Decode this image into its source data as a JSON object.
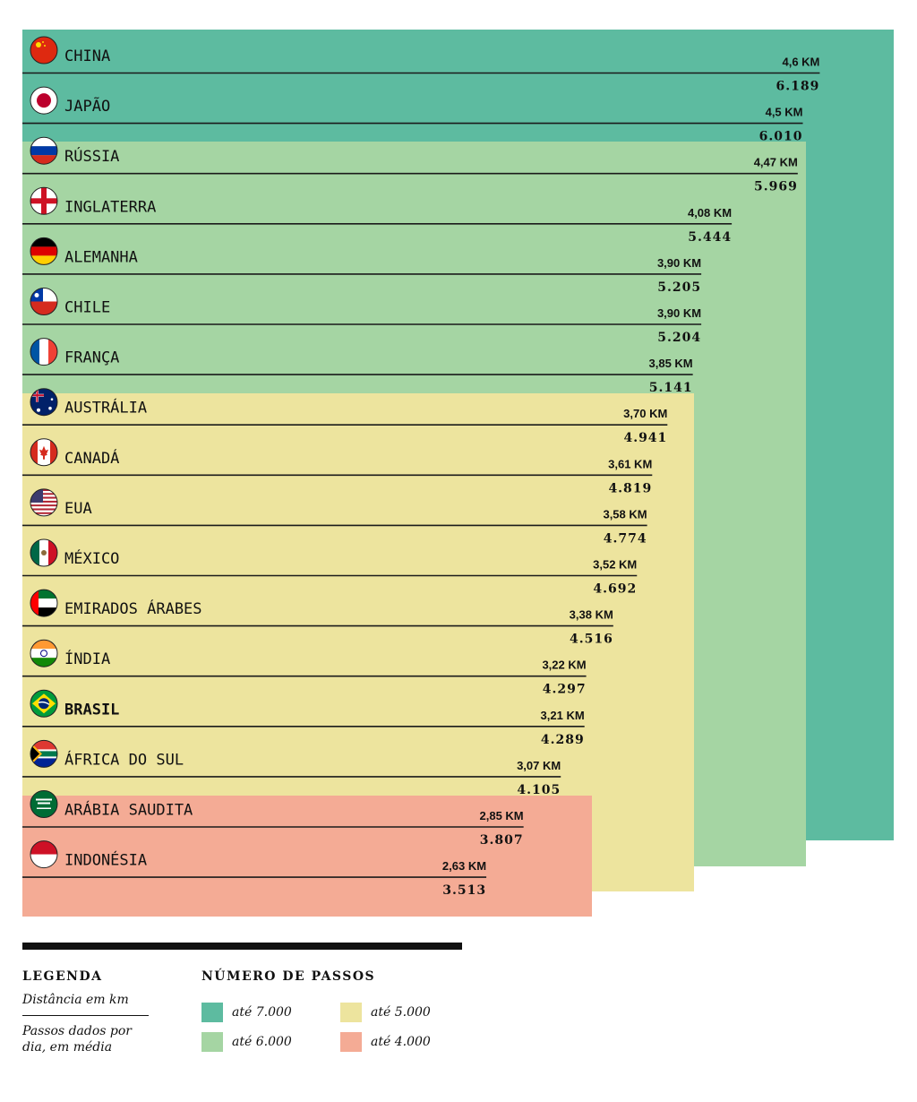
{
  "chart_data": {
    "type": "bar",
    "title": "",
    "orientation": "horizontal",
    "categories": [
      "CHINA",
      "JAPÃO",
      "RÚSSIA",
      "INGLATERRA",
      "ALEMANHA",
      "CHILE",
      "FRANÇA",
      "AUSTRÁLIA",
      "CANADÁ",
      "EUA",
      "MÉXICO",
      "EMIRADOS ÁRABES",
      "ÍNDIA",
      "BRASIL",
      "ÁFRICA DO SUL",
      "ARÁBIA SAUDITA",
      "INDONÉSIA"
    ],
    "highlight": "BRASIL",
    "series": [
      {
        "name": "Distância em km",
        "values": [
          4.6,
          4.5,
          4.47,
          4.08,
          3.9,
          3.9,
          3.85,
          3.7,
          3.61,
          3.58,
          3.52,
          3.38,
          3.22,
          3.21,
          3.07,
          2.85,
          2.63
        ]
      },
      {
        "name": "Passos dados por dia, em média",
        "values": [
          6189,
          6010,
          5969,
          5444,
          5205,
          5204,
          5141,
          4941,
          4819,
          4774,
          4692,
          4516,
          4297,
          4289,
          4105,
          3807,
          3513
        ]
      }
    ],
    "km_labels": [
      "4,6 KM",
      "4,5 KM",
      "4,47 KM",
      "4,08 KM",
      "3,90 KM",
      "3,90 KM",
      "3,85 KM",
      "3,70 KM",
      "3,61 KM",
      "3,58 KM",
      "3,52 KM",
      "3,38 KM",
      "3,22 KM",
      "3,21 KM",
      "3,07 KM",
      "2,85 KM",
      "2,63 KM"
    ],
    "steps_labels": [
      "6.189",
      "6.010",
      "5.969",
      "5.444",
      "5.205",
      "5.204",
      "5.141",
      "4.941",
      "4.819",
      "4.774",
      "4.692",
      "4.516",
      "4.297",
      "4.289",
      "4.105",
      "3.807",
      "3.513"
    ],
    "bands": [
      {
        "label": "até 7.000",
        "color": "#5dbba0"
      },
      {
        "label": "até 6.000",
        "color": "#a5d5a3"
      },
      {
        "label": "até 5.000",
        "color": "#ede49e"
      },
      {
        "label": "até 4.000",
        "color": "#f4ab95"
      }
    ],
    "flags": [
      "china-flag",
      "japan-flag",
      "russia-flag",
      "england-flag",
      "germany-flag",
      "chile-flag",
      "france-flag",
      "australia-flag",
      "canada-flag",
      "usa-flag",
      "mexico-flag",
      "uae-flag",
      "india-flag",
      "brazil-flag",
      "south-africa-flag",
      "saudi-arabia-flag",
      "indonesia-flag"
    ]
  },
  "legend": {
    "title": "LEGENDA",
    "km_desc": "Distância em km",
    "steps_desc": "Passos dados por dia, em média",
    "scale_title": "NÚMERO DE PASSOS",
    "items": [
      "até 7.000",
      "até 6.000",
      "até 5.000",
      "até 4.000"
    ]
  }
}
